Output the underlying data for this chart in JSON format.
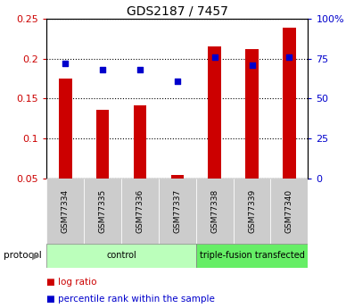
{
  "title": "GDS2187 / 7457",
  "samples": [
    "GSM77334",
    "GSM77335",
    "GSM77336",
    "GSM77337",
    "GSM77338",
    "GSM77339",
    "GSM77340"
  ],
  "log_ratio": [
    0.175,
    0.136,
    0.141,
    0.055,
    0.215,
    0.212,
    0.238
  ],
  "percentile_rank": [
    72,
    68,
    68,
    61,
    76,
    71,
    76
  ],
  "bar_color": "#cc0000",
  "dot_color": "#0000cc",
  "ylim_left": [
    0.05,
    0.25
  ],
  "ylim_right": [
    0,
    100
  ],
  "yticks_left": [
    0.05,
    0.1,
    0.15,
    0.2,
    0.25
  ],
  "yticks_right": [
    0,
    25,
    50,
    75,
    100
  ],
  "ytick_labels_left": [
    "0.05",
    "0.1",
    "0.15",
    "0.2",
    "0.25"
  ],
  "ytick_labels_right": [
    "0",
    "25",
    "50",
    "75",
    "100%"
  ],
  "groups": [
    {
      "label": "control",
      "indices": [
        0,
        1,
        2,
        3
      ],
      "color": "#bbffbb"
    },
    {
      "label": "triple-fusion transfected",
      "indices": [
        4,
        5,
        6
      ],
      "color": "#66ee66"
    }
  ],
  "protocol_label": "protocol",
  "legend_items": [
    {
      "label": "log ratio",
      "color": "#cc0000"
    },
    {
      "label": "percentile rank within the sample",
      "color": "#0000cc"
    }
  ],
  "tick_label_area_color": "#cccccc",
  "bar_width": 0.35
}
